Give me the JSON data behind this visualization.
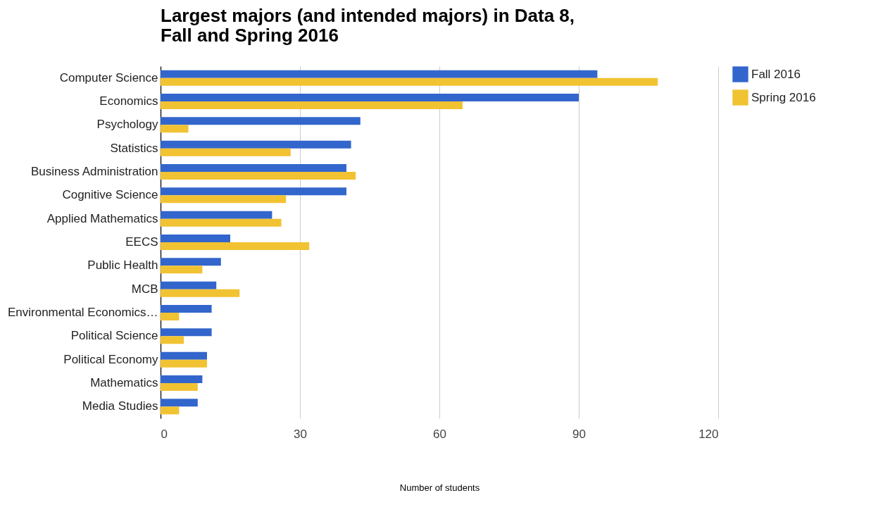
{
  "chart_data": {
    "type": "bar",
    "orientation": "horizontal",
    "title": "Largest majors (and intended majors) in Data 8,\nFall and Spring 2016",
    "xlabel": "Number of students",
    "categories": [
      "Computer Science",
      "Economics",
      "Psychology",
      "Statistics",
      "Business Administration",
      "Cognitive Science",
      "Applied Mathematics",
      "EECS",
      "Public Health",
      "MCB",
      "Environmental Economics…",
      "Political Science",
      "Political Economy",
      "Mathematics",
      "Media Studies"
    ],
    "series": [
      {
        "name": "Fall 2016",
        "color": "#3366cc",
        "values": [
          94,
          90,
          43,
          41,
          40,
          40,
          24,
          15,
          13,
          12,
          11,
          11,
          10,
          9,
          8
        ]
      },
      {
        "name": "Spring 2016",
        "color": "#f1c232",
        "values": [
          107,
          65,
          6,
          28,
          42,
          27,
          26,
          32,
          9,
          17,
          4,
          5,
          10,
          8,
          4
        ]
      }
    ],
    "xlim": [
      0,
      120
    ],
    "xticks": [
      0,
      30,
      60,
      90,
      120
    ],
    "grid": "x",
    "legend": "top right"
  }
}
